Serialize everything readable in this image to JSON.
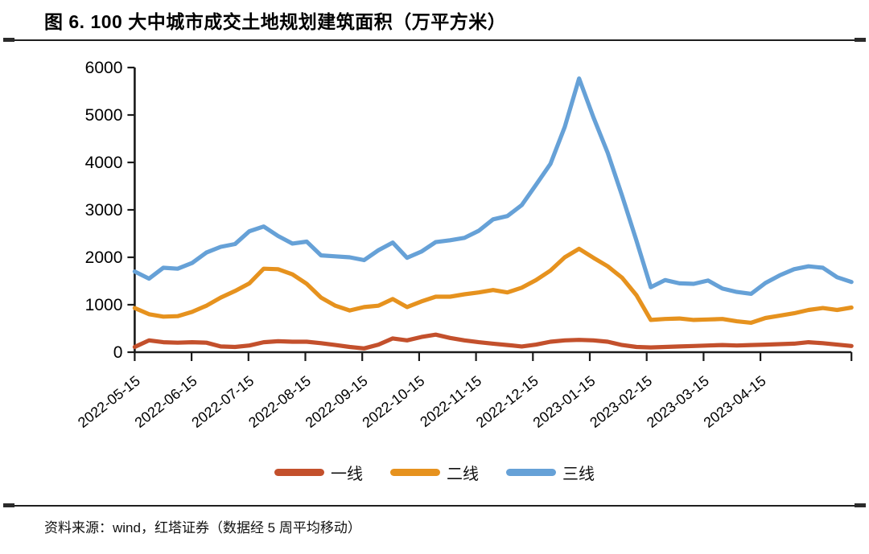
{
  "figure": {
    "title": "图 6. 100 大中城市成交土地规划建筑面积（万平方米）",
    "source_note": "资料来源：wind，红塔证券（数据经 5 周平均移动）"
  },
  "chart_data": {
    "type": "line",
    "title": "100 大中城市成交土地规划建筑面积（万平方米）",
    "unit": "万平方米",
    "xlabel": "",
    "ylabel": "",
    "ylim": [
      0,
      6000
    ],
    "y_ticks": [
      0,
      1000,
      2000,
      3000,
      4000,
      5000,
      6000
    ],
    "grid": false,
    "legend_position": "bottom",
    "x_tick_labels": [
      "2022-05-15",
      "2022-06-15",
      "2022-07-15",
      "2022-08-15",
      "2022-09-15",
      "2022-10-15",
      "2022-11-15",
      "2022-12-15",
      "2023-01-15",
      "2023-02-15",
      "2023-03-15",
      "2023-04-15"
    ],
    "x": [
      "2022-05-15",
      "2022-05-22",
      "2022-05-29",
      "2022-06-05",
      "2022-06-12",
      "2022-06-19",
      "2022-06-26",
      "2022-07-03",
      "2022-07-10",
      "2022-07-17",
      "2022-07-24",
      "2022-07-31",
      "2022-08-07",
      "2022-08-14",
      "2022-08-21",
      "2022-08-28",
      "2022-09-04",
      "2022-09-11",
      "2022-09-18",
      "2022-09-25",
      "2022-10-02",
      "2022-10-09",
      "2022-10-16",
      "2022-10-23",
      "2022-10-30",
      "2022-11-06",
      "2022-11-13",
      "2022-11-20",
      "2022-11-27",
      "2022-12-04",
      "2022-12-11",
      "2022-12-18",
      "2022-12-25",
      "2023-01-01",
      "2023-01-08",
      "2023-01-15",
      "2023-01-22",
      "2023-01-29",
      "2023-02-05",
      "2023-02-12",
      "2023-02-19",
      "2023-02-26",
      "2023-03-05",
      "2023-03-12",
      "2023-03-19",
      "2023-03-26",
      "2023-04-02",
      "2023-04-09",
      "2023-04-16",
      "2023-04-23",
      "2023-04-30"
    ],
    "series": [
      {
        "name": "一线",
        "color": "#c3502c",
        "values": [
          110,
          250,
          210,
          200,
          210,
          200,
          120,
          110,
          140,
          210,
          230,
          220,
          220,
          190,
          150,
          110,
          80,
          160,
          290,
          250,
          320,
          370,
          300,
          250,
          210,
          180,
          150,
          120,
          160,
          220,
          250,
          260,
          250,
          220,
          150,
          110,
          100,
          110,
          120,
          130,
          140,
          150,
          140,
          150,
          160,
          170,
          180,
          210,
          190,
          160,
          130
        ]
      },
      {
        "name": "二线",
        "color": "#e6921e",
        "values": [
          930,
          800,
          750,
          760,
          850,
          980,
          1150,
          1290,
          1450,
          1760,
          1750,
          1640,
          1440,
          1150,
          980,
          880,
          950,
          980,
          1120,
          950,
          1070,
          1170,
          1170,
          1220,
          1260,
          1310,
          1260,
          1360,
          1520,
          1720,
          2000,
          2180,
          1990,
          1810,
          1570,
          1200,
          680,
          700,
          710,
          680,
          690,
          700,
          650,
          620,
          720,
          770,
          820,
          890,
          930,
          890,
          940
        ]
      },
      {
        "name": "三线",
        "color": "#66a1d7",
        "values": [
          1700,
          1550,
          1780,
          1760,
          1880,
          2100,
          2220,
          2280,
          2550,
          2650,
          2450,
          2290,
          2330,
          2040,
          2020,
          2000,
          1940,
          2150,
          2310,
          1990,
          2120,
          2320,
          2360,
          2410,
          2560,
          2800,
          2870,
          3100,
          3530,
          3970,
          4750,
          5770,
          4950,
          4200,
          3300,
          2350,
          1370,
          1520,
          1450,
          1440,
          1510,
          1340,
          1270,
          1230,
          1460,
          1620,
          1750,
          1810,
          1780,
          1580,
          1480
        ]
      }
    ]
  }
}
